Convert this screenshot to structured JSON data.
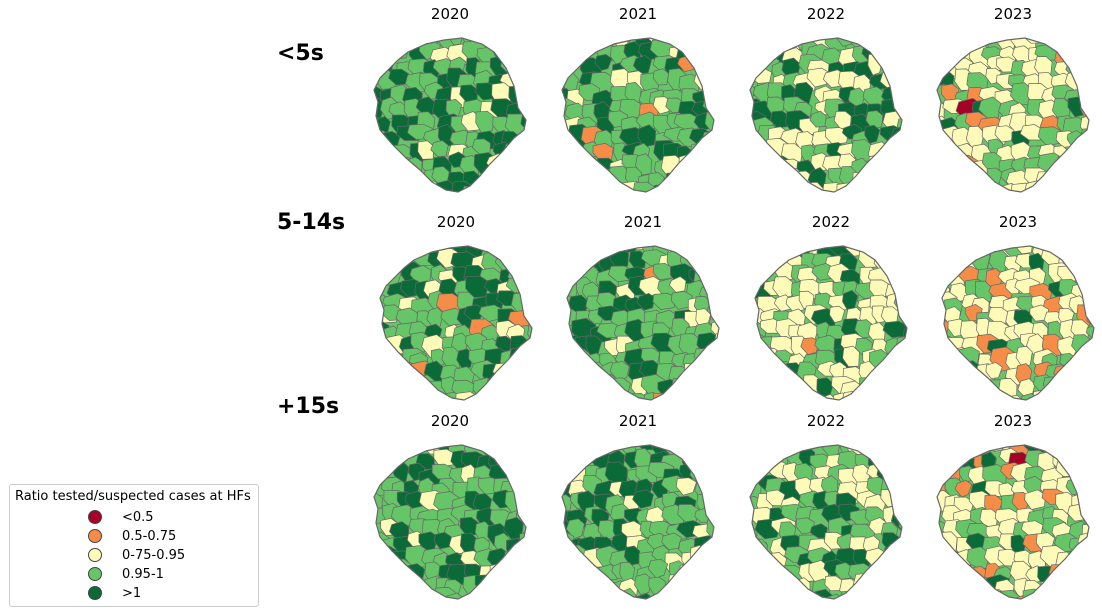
{
  "rows": [
    {
      "label": "<5s",
      "years": [
        "2020",
        "2021",
        "2022",
        "2023"
      ]
    },
    {
      "label": "5-14s",
      "years": [
        "2020",
        "2021",
        "2022",
        "2023"
      ]
    },
    {
      "label": "+15s",
      "years": [
        "2020",
        "2021",
        "2022",
        "2023"
      ]
    }
  ],
  "legend": {
    "title": "Ratio tested/suspected cases at HFs",
    "items": [
      {
        "label": "<0.5",
        "color": "#a50026"
      },
      {
        "label": "0.5-0.75",
        "color": "#f58d48"
      },
      {
        "label": "0-75-0.95",
        "color": "#fefbb8"
      },
      {
        "label": "0.95-1",
        "color": "#66c566"
      },
      {
        "label": ">1",
        "color": "#0a6b39"
      }
    ]
  },
  "colors": {
    "lt05": "#a50026",
    "c0575": "#f58d48",
    "c7595": "#fefbb8",
    "c951": "#66c566",
    "gt1": "#0a6b39",
    "border": "#666666"
  }
}
